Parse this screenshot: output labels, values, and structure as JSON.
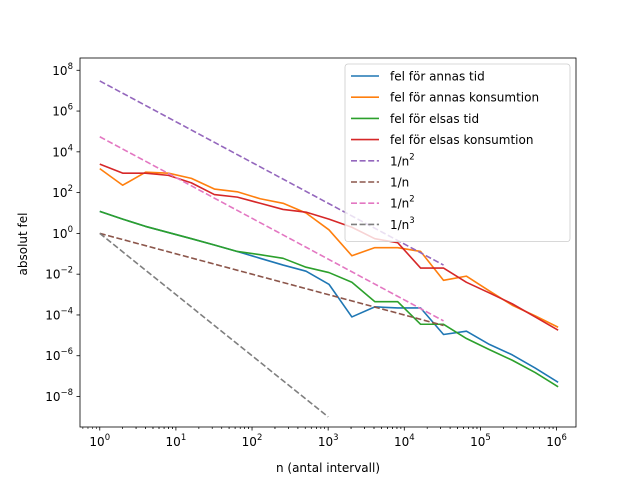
{
  "chart_data": {
    "type": "line",
    "title": "",
    "xlabel": "n (antal intervall)",
    "ylabel": "absolut fel",
    "xscale": "log",
    "yscale": "log",
    "xlim": [
      0.55,
      1800000
    ],
    "ylim": [
      3.2e-10,
      400000000.0
    ],
    "grid": false,
    "legend_position": "top-right",
    "x_ticks": [
      {
        "value": 1,
        "base": "10",
        "exp": "0"
      },
      {
        "value": 10,
        "base": "10",
        "exp": "1"
      },
      {
        "value": 100,
        "base": "10",
        "exp": "2"
      },
      {
        "value": 1000,
        "base": "10",
        "exp": "3"
      },
      {
        "value": 10000,
        "base": "10",
        "exp": "4"
      },
      {
        "value": 100000,
        "base": "10",
        "exp": "5"
      },
      {
        "value": 1000000,
        "base": "10",
        "exp": "6"
      }
    ],
    "y_ticks": [
      {
        "value": 1e-08,
        "base": "10",
        "exp": "−8"
      },
      {
        "value": 1e-06,
        "base": "10",
        "exp": "−6"
      },
      {
        "value": 0.0001,
        "base": "10",
        "exp": "−4"
      },
      {
        "value": 0.01,
        "base": "10",
        "exp": "−2"
      },
      {
        "value": 1,
        "base": "10",
        "exp": "0"
      },
      {
        "value": 100,
        "base": "10",
        "exp": "2"
      },
      {
        "value": 10000,
        "base": "10",
        "exp": "4"
      },
      {
        "value": 1000000,
        "base": "10",
        "exp": "6"
      },
      {
        "value": 100000000,
        "base": "10",
        "exp": "8"
      }
    ],
    "series": [
      {
        "name": "fel för annas tid",
        "color": "#1f77b4",
        "dash": "solid",
        "x": [
          1,
          2,
          4,
          8,
          16,
          32,
          64,
          128,
          256,
          512,
          1024,
          2048,
          4096,
          8192,
          16384,
          32768,
          65536,
          131072,
          262144,
          524288,
          1048576
        ],
        "y": [
          12,
          5,
          2.2,
          1.1,
          0.55,
          0.27,
          0.13,
          0.06,
          0.028,
          0.014,
          0.0032,
          8e-05,
          0.00025,
          0.00022,
          0.00022,
          1.1e-05,
          1.6e-05,
          3.6e-06,
          1.1e-06,
          2.5e-07,
          5e-08
        ]
      },
      {
        "name": "fel för annas konsumtion",
        "color": "#ff7f0e",
        "dash": "solid",
        "x": [
          1,
          2,
          4,
          8,
          16,
          32,
          64,
          128,
          256,
          512,
          1024,
          2048,
          4096,
          8192,
          16384,
          32768,
          65536,
          131072,
          262144,
          524288,
          1048576
        ],
        "y": [
          1500,
          230,
          1000,
          900,
          500,
          150,
          110,
          50,
          30,
          10,
          1.5,
          0.08,
          0.2,
          0.2,
          0.13,
          0.005,
          0.008,
          0.0015,
          0.0003,
          9e-05,
          2.5e-05
        ]
      },
      {
        "name": "fel för elsas tid",
        "color": "#2ca02c",
        "dash": "solid",
        "x": [
          1,
          2,
          4,
          8,
          16,
          32,
          64,
          128,
          256,
          512,
          1024,
          2048,
          4096,
          8192,
          16384,
          32768,
          65536,
          131072,
          262144,
          524288,
          1048576
        ],
        "y": [
          12,
          5,
          2.2,
          1.1,
          0.55,
          0.27,
          0.13,
          0.09,
          0.06,
          0.022,
          0.012,
          0.004,
          0.00045,
          0.00045,
          3.5e-05,
          3.5e-05,
          7e-06,
          2e-06,
          6e-07,
          1.5e-07,
          3e-08
        ]
      },
      {
        "name": "fel för elsas konsumtion",
        "color": "#d62728",
        "dash": "solid",
        "x": [
          1,
          2,
          4,
          8,
          16,
          32,
          64,
          128,
          256,
          512,
          1024,
          2048,
          4096,
          8192,
          16384,
          32768,
          65536,
          131072,
          262144,
          524288,
          1048576
        ],
        "y": [
          2500,
          900,
          900,
          700,
          300,
          80,
          60,
          30,
          15,
          11,
          5,
          2,
          0.55,
          0.35,
          0.02,
          0.02,
          0.004,
          0.0012,
          0.00035,
          8e-05,
          1.8e-05
        ]
      },
      {
        "name": "1/n²",
        "color": "#9467bd",
        "dash": "dashed",
        "x": [
          1,
          32768
        ],
        "y": [
          30000000,
          0.028
        ]
      },
      {
        "name": "1/n",
        "color": "#8c564b",
        "dash": "dashed",
        "x": [
          1,
          32768
        ],
        "y": [
          1,
          3.05e-05
        ]
      },
      {
        "name": "1/n²",
        "color": "#e377c2",
        "dash": "dashed",
        "x": [
          1,
          32768
        ],
        "y": [
          55000,
          5.12e-05
        ]
      },
      {
        "name": "1/n³",
        "color": "#7f7f7f",
        "dash": "dashed",
        "x": [
          1,
          1000
        ],
        "y": [
          1,
          1e-09
        ]
      }
    ]
  },
  "legend": {
    "items": [
      {
        "base": "fel för annas tid",
        "sup": "",
        "color": "#1f77b4",
        "dashed": false
      },
      {
        "base": "fel för annas konsumtion",
        "sup": "",
        "color": "#ff7f0e",
        "dashed": false
      },
      {
        "base": "fel för elsas tid",
        "sup": "",
        "color": "#2ca02c",
        "dashed": false
      },
      {
        "base": "fel för elsas konsumtion",
        "sup": "",
        "color": "#d62728",
        "dashed": false
      },
      {
        "base": "1/n",
        "sup": "2",
        "color": "#9467bd",
        "dashed": true
      },
      {
        "base": "1/n",
        "sup": "",
        "color": "#8c564b",
        "dashed": true
      },
      {
        "base": "1/n",
        "sup": "2",
        "color": "#e377c2",
        "dashed": true
      },
      {
        "base": "1/n",
        "sup": "3",
        "color": "#7f7f7f",
        "dashed": true
      }
    ]
  }
}
